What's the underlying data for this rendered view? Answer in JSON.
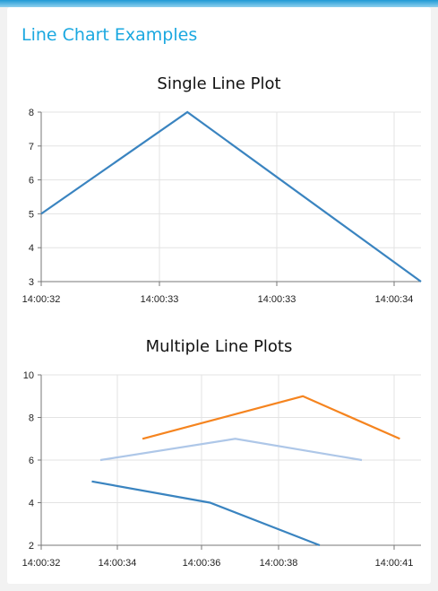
{
  "page": {
    "title": "Line Chart Examples"
  },
  "chart_data": [
    {
      "type": "line",
      "title": "Single Line Plot",
      "x_ticks": [
        "14:00:32",
        "14:00:33",
        "14:00:33",
        "14:00:34"
      ],
      "y_ticks": [
        "3",
        "4",
        "5",
        "6",
        "7",
        "8"
      ],
      "ylim": [
        3,
        8
      ],
      "xlim_seconds": [
        "14:00:32.0",
        "14:00:34.0"
      ],
      "grid": true,
      "series": [
        {
          "color": "#3a84c0",
          "points": [
            {
              "x": "14:00:32.00",
              "y": 5
            },
            {
              "x": "14:00:32.77",
              "y": 8
            },
            {
              "x": "14:00:34.00",
              "y": 3
            }
          ]
        }
      ]
    },
    {
      "type": "line",
      "title": "Multiple Line Plots",
      "x_ticks": [
        "14:00:32",
        "14:00:34",
        "14:00:36",
        "14:00:38",
        "14:00:41"
      ],
      "y_ticks": [
        "2",
        "4",
        "6",
        "8",
        "10"
      ],
      "ylim": [
        2,
        10
      ],
      "grid": true,
      "series": [
        {
          "color": "#f5841f",
          "points": [
            {
              "x": "14:00:34.4",
              "y": 7
            },
            {
              "x": "14:00:38.2",
              "y": 9
            },
            {
              "x": "14:00:40.5",
              "y": 7
            }
          ]
        },
        {
          "color": "#aec7e8",
          "points": [
            {
              "x": "14:00:33.4",
              "y": 6
            },
            {
              "x": "14:00:36.6",
              "y": 7
            },
            {
              "x": "14:00:39.6",
              "y": 6
            }
          ]
        },
        {
          "color": "#3a84c0",
          "points": [
            {
              "x": "14:00:33.2",
              "y": 5
            },
            {
              "x": "14:00:36.0",
              "y": 4
            },
            {
              "x": "14:00:38.6",
              "y": 2
            }
          ]
        }
      ]
    }
  ]
}
